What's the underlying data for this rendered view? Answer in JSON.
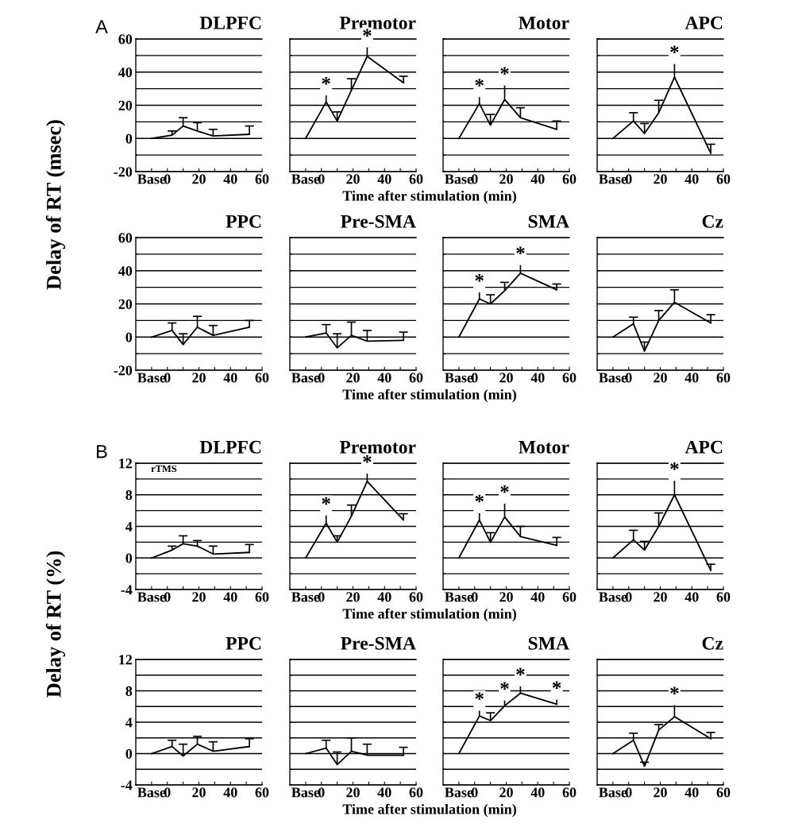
{
  "chart_data": [
    {
      "type": "line",
      "title": "DLPFC",
      "ylabel": "Delay of RT (msec)",
      "annotations": [
        "A"
      ],
      "x": [
        -10,
        3,
        10,
        19,
        29,
        52
      ],
      "xlim": [
        -20,
        60
      ],
      "xticks": [
        {
          "value": -10,
          "label": "Base"
        },
        0,
        {
          "value": 10,
          "label": null
        },
        20,
        {
          "value": 30,
          "label": null
        },
        40,
        {
          "value": 50,
          "label": null
        },
        60
      ],
      "ylim": [
        -20,
        60
      ],
      "yticks": [
        -20,
        {
          "value": -10,
          "label": null
        },
        0,
        {
          "value": 10,
          "label": null
        },
        20,
        {
          "value": 30,
          "label": null
        },
        40,
        {
          "value": 50,
          "label": null
        },
        60
      ],
      "grid": "y",
      "marker": "none",
      "line_style": "solid",
      "series": [
        {
          "color": "#000000",
          "values": [
            0,
            2,
            7.5,
            4.5,
            1.5,
            2.5
          ],
          "errors": [
            null,
            [
              2,
              4.5
            ],
            [
              7.5,
              12.5
            ],
            [
              4.5,
              9.5
            ],
            [
              1.5,
              5.5
            ],
            [
              2.5,
              7.5
            ]
          ]
        }
      ]
    },
    {
      "type": "line",
      "title": "Premotor",
      "xlabel": "Time after stimulation (min)",
      "annotations": [
        {
          "text": "*",
          "x": 3,
          "y": 26.5
        },
        {
          "text": "*",
          "x": 29,
          "y": 55.5
        }
      ],
      "x": [
        -10,
        3,
        10,
        19,
        29,
        52
      ],
      "xlim": [
        -20,
        60
      ],
      "xticks": [
        {
          "value": -10,
          "label": "Base"
        },
        0,
        {
          "value": 10,
          "label": null
        },
        20,
        {
          "value": 30,
          "label": null
        },
        40,
        {
          "value": 50,
          "label": null
        },
        60
      ],
      "ylim": [
        -20,
        60
      ],
      "yticks": [
        -20,
        {
          "value": -10,
          "label": null
        },
        0,
        {
          "value": 10,
          "label": null
        },
        20,
        {
          "value": 30,
          "label": null
        },
        40,
        {
          "value": 50,
          "label": null
        },
        60
      ],
      "grid": "y",
      "tick_labels": "x",
      "marker": "none",
      "line_style": "solid",
      "series": [
        {
          "color": "#000000",
          "values": [
            0,
            22,
            10.5,
            29,
            49.5,
            33.5
          ],
          "errors": [
            null,
            [
              22,
              26.5
            ],
            [
              10.5,
              16
            ],
            [
              29,
              36
            ],
            [
              49.5,
              55.5
            ],
            [
              33.5,
              37.5
            ]
          ]
        }
      ]
    },
    {
      "type": "line",
      "title": "Motor",
      "annotations": [
        {
          "text": "*",
          "x": 3,
          "y": 25.5
        },
        {
          "text": "*",
          "x": 19,
          "y": 32.5
        }
      ],
      "x": [
        -10,
        3,
        10,
        19,
        29,
        52
      ],
      "xlim": [
        -20,
        60
      ],
      "xticks": [
        {
          "value": -10,
          "label": "Base"
        },
        0,
        {
          "value": 10,
          "label": null
        },
        20,
        {
          "value": 30,
          "label": null
        },
        40,
        {
          "value": 50,
          "label": null
        },
        60
      ],
      "ylim": [
        -20,
        60
      ],
      "yticks": [
        -20,
        {
          "value": -10,
          "label": null
        },
        0,
        {
          "value": 10,
          "label": null
        },
        20,
        {
          "value": 30,
          "label": null
        },
        40,
        {
          "value": 50,
          "label": null
        },
        60
      ],
      "grid": "y",
      "tick_labels": "x",
      "marker": "none",
      "line_style": "solid",
      "series": [
        {
          "color": "#000000",
          "values": [
            0,
            21,
            8,
            23.5,
            12.5,
            5.5
          ],
          "errors": [
            null,
            [
              21,
              25.5
            ],
            [
              8,
              14.5
            ],
            [
              23.5,
              32.5
            ],
            [
              12.5,
              18.5
            ],
            [
              5.5,
              10.5
            ]
          ]
        }
      ]
    },
    {
      "type": "line",
      "title": "APC",
      "annotations": [
        {
          "text": "*",
          "x": 29,
          "y": 45.5
        }
      ],
      "x": [
        -10,
        3,
        10,
        19,
        29,
        52
      ],
      "xlim": [
        -20,
        60
      ],
      "xticks": [
        {
          "value": -10,
          "label": "Base"
        },
        0,
        {
          "value": 10,
          "label": null
        },
        20,
        {
          "value": 30,
          "label": null
        },
        40,
        {
          "value": 50,
          "label": null
        },
        60
      ],
      "ylim": [
        -20,
        60
      ],
      "yticks": [
        -20,
        {
          "value": -10,
          "label": null
        },
        0,
        {
          "value": 10,
          "label": null
        },
        20,
        {
          "value": 30,
          "label": null
        },
        40,
        {
          "value": 50,
          "label": null
        },
        60
      ],
      "grid": "y",
      "tick_labels": "x",
      "marker": "none",
      "line_style": "solid",
      "series": [
        {
          "color": "#000000",
          "values": [
            0,
            10.5,
            3,
            15.5,
            37,
            -9
          ],
          "errors": [
            null,
            [
              10.5,
              15.5
            ],
            [
              3,
              9
            ],
            [
              15.5,
              23
            ],
            [
              37,
              45.5
            ],
            [
              -9,
              -3.5
            ]
          ]
        }
      ]
    },
    {
      "type": "line",
      "title": "PPC",
      "x": [
        -10,
        3,
        10,
        19,
        29,
        52
      ],
      "xlim": [
        -20,
        60
      ],
      "xticks": [
        {
          "value": -10,
          "label": "Base"
        },
        0,
        {
          "value": 10,
          "label": null
        },
        20,
        {
          "value": 30,
          "label": null
        },
        40,
        {
          "value": 50,
          "label": null
        },
        60
      ],
      "ylim": [
        -20,
        60
      ],
      "yticks": [
        -20,
        {
          "value": -10,
          "label": null
        },
        0,
        {
          "value": 10,
          "label": null
        },
        20,
        {
          "value": 30,
          "label": null
        },
        40,
        {
          "value": 50,
          "label": null
        },
        60
      ],
      "grid": "y",
      "marker": "none",
      "line_style": "solid",
      "series": [
        {
          "color": "#000000",
          "values": [
            0,
            4,
            -4.5,
            6,
            1,
            6
          ],
          "errors": [
            null,
            [
              4,
              8.5
            ],
            [
              -4.5,
              2
            ],
            [
              6,
              12.5
            ],
            [
              1,
              7
            ],
            [
              6,
              10
            ]
          ]
        }
      ]
    },
    {
      "type": "line",
      "title": "Pre-SMA",
      "xlabel": "Time after stimulation (min)",
      "x": [
        -10,
        3,
        10,
        19,
        29,
        52
      ],
      "xlim": [
        -20,
        60
      ],
      "xticks": [
        {
          "value": -10,
          "label": "Base"
        },
        0,
        {
          "value": 10,
          "label": null
        },
        20,
        {
          "value": 30,
          "label": null
        },
        40,
        {
          "value": 50,
          "label": null
        },
        60
      ],
      "ylim": [
        -20,
        60
      ],
      "yticks": [
        -20,
        {
          "value": -10,
          "label": null
        },
        0,
        {
          "value": 10,
          "label": null
        },
        20,
        {
          "value": 30,
          "label": null
        },
        40,
        {
          "value": 50,
          "label": null
        },
        60
      ],
      "grid": "y",
      "tick_labels": "x",
      "marker": "none",
      "line_style": "solid",
      "series": [
        {
          "color": "#000000",
          "values": [
            0,
            2.5,
            -6.5,
            1,
            -2.5,
            -2
          ],
          "errors": [
            null,
            [
              2.5,
              7.5
            ],
            [
              -6.5,
              2
            ],
            [
              1,
              9
            ],
            [
              -2.5,
              4
            ],
            [
              -2,
              3
            ]
          ]
        }
      ]
    },
    {
      "type": "line",
      "title": "SMA",
      "annotations": [
        {
          "text": "*",
          "x": 3,
          "y": 27.5
        },
        {
          "text": "*",
          "x": 29,
          "y": 44
        }
      ],
      "x": [
        -10,
        3,
        10,
        19,
        29,
        52
      ],
      "xlim": [
        -20,
        60
      ],
      "xticks": [
        {
          "value": -10,
          "label": "Base"
        },
        0,
        {
          "value": 10,
          "label": null
        },
        20,
        {
          "value": 30,
          "label": null
        },
        40,
        {
          "value": 50,
          "label": null
        },
        60
      ],
      "ylim": [
        -20,
        60
      ],
      "yticks": [
        -20,
        {
          "value": -10,
          "label": null
        },
        0,
        {
          "value": 10,
          "label": null
        },
        20,
        {
          "value": 30,
          "label": null
        },
        40,
        {
          "value": 50,
          "label": null
        },
        60
      ],
      "grid": "y",
      "tick_labels": "x",
      "marker": "none",
      "line_style": "solid",
      "series": [
        {
          "color": "#000000",
          "values": [
            0,
            23,
            20,
            28,
            38.5,
            28.5
          ],
          "errors": [
            null,
            [
              23,
              27.5
            ],
            [
              20,
              25.5
            ],
            [
              28,
              33
            ],
            [
              38.5,
              44
            ],
            [
              28.5,
              32
            ]
          ]
        }
      ]
    },
    {
      "type": "line",
      "title": "Cz",
      "x": [
        -10,
        3,
        10,
        19,
        29,
        52
      ],
      "xlim": [
        -20,
        60
      ],
      "xticks": [
        {
          "value": -10,
          "label": "Base"
        },
        0,
        {
          "value": 10,
          "label": null
        },
        20,
        {
          "value": 30,
          "label": null
        },
        40,
        {
          "value": 50,
          "label": null
        },
        60
      ],
      "ylim": [
        -20,
        60
      ],
      "yticks": [
        -20,
        {
          "value": -10,
          "label": null
        },
        0,
        {
          "value": 10,
          "label": null
        },
        20,
        {
          "value": 30,
          "label": null
        },
        40,
        {
          "value": 50,
          "label": null
        },
        60
      ],
      "grid": "y",
      "tick_labels": "x",
      "marker": "none",
      "line_style": "solid",
      "series": [
        {
          "color": "#000000",
          "values": [
            0,
            8,
            -8.5,
            10,
            21,
            8.5
          ],
          "errors": [
            null,
            [
              8,
              12
            ],
            [
              -8.5,
              -3
            ],
            [
              10,
              16
            ],
            [
              21,
              28.5
            ],
            [
              8.5,
              13.5
            ]
          ]
        }
      ]
    },
    {
      "type": "line",
      "title": "DLPFC",
      "ylabel": "Delay of RT (%)",
      "annotations": [
        "B",
        "rTMS"
      ],
      "x": [
        -10,
        3,
        10,
        19,
        29,
        52
      ],
      "xlim": [
        -20,
        60
      ],
      "xticks": [
        {
          "value": -10,
          "label": "Base"
        },
        0,
        {
          "value": 10,
          "label": null
        },
        20,
        {
          "value": 30,
          "label": null
        },
        40,
        {
          "value": 50,
          "label": null
        },
        60
      ],
      "ylim": [
        -4,
        12
      ],
      "yticks": [
        -4,
        {
          "value": -2,
          "label": null
        },
        0,
        {
          "value": 2,
          "label": null
        },
        4,
        {
          "value": 6,
          "label": null
        },
        8,
        {
          "value": 10,
          "label": null
        },
        12
      ],
      "grid": "y",
      "marker": "none",
      "line_style": "solid",
      "series": [
        {
          "color": "#000000",
          "values": [
            0,
            1,
            1.8,
            1.5,
            0.5,
            0.7
          ],
          "errors": [
            null,
            [
              1,
              1.5
            ],
            [
              1.8,
              2.8
            ],
            [
              1.5,
              2.2
            ],
            [
              0.5,
              1.5
            ],
            [
              0.7,
              1.7
            ]
          ]
        }
      ]
    },
    {
      "type": "line",
      "title": "Premotor",
      "xlabel": "Time after stimulation (min)",
      "annotations": [
        {
          "text": "*",
          "x": 3,
          "y": 5.5
        },
        {
          "text": "*",
          "x": 29,
          "y": 10.8
        }
      ],
      "x": [
        -10,
        3,
        10,
        19,
        29,
        52
      ],
      "xlim": [
        -20,
        60
      ],
      "xticks": [
        {
          "value": -10,
          "label": "Base"
        },
        0,
        {
          "value": 10,
          "label": null
        },
        20,
        {
          "value": 30,
          "label": null
        },
        40,
        {
          "value": 50,
          "label": null
        },
        60
      ],
      "ylim": [
        -4,
        12
      ],
      "yticks": [
        -4,
        {
          "value": -2,
          "label": null
        },
        0,
        {
          "value": 2,
          "label": null
        },
        4,
        {
          "value": 6,
          "label": null
        },
        8,
        {
          "value": 10,
          "label": null
        },
        12
      ],
      "grid": "y",
      "tick_labels": "x",
      "marker": "none",
      "line_style": "solid",
      "series": [
        {
          "color": "#000000",
          "values": [
            0,
            4.4,
            2,
            5.3,
            9.7,
            4.8
          ],
          "errors": [
            null,
            [
              4.4,
              5.5
            ],
            [
              2,
              2.8
            ],
            [
              5.3,
              6.7
            ],
            [
              9.7,
              10.8
            ],
            [
              4.8,
              5.6
            ]
          ]
        }
      ]
    },
    {
      "type": "line",
      "title": "Motor",
      "annotations": [
        {
          "text": "*",
          "x": 3,
          "y": 5.8
        },
        {
          "text": "*",
          "x": 19,
          "y": 7
        }
      ],
      "x": [
        -10,
        3,
        10,
        19,
        29,
        52
      ],
      "xlim": [
        -20,
        60
      ],
      "xticks": [
        {
          "value": -10,
          "label": "Base"
        },
        0,
        {
          "value": 10,
          "label": null
        },
        20,
        {
          "value": 30,
          "label": null
        },
        40,
        {
          "value": 50,
          "label": null
        },
        60
      ],
      "ylim": [
        -4,
        12
      ],
      "yticks": [
        -4,
        {
          "value": -2,
          "label": null
        },
        0,
        {
          "value": 2,
          "label": null
        },
        4,
        {
          "value": 6,
          "label": null
        },
        8,
        {
          "value": 10,
          "label": null
        },
        12
      ],
      "grid": "y",
      "tick_labels": "x",
      "marker": "none",
      "line_style": "solid",
      "series": [
        {
          "color": "#000000",
          "values": [
            0,
            4.8,
            2,
            5.2,
            2.7,
            1.6
          ],
          "errors": [
            null,
            [
              4.8,
              5.8
            ],
            [
              2,
              3.2
            ],
            [
              5.2,
              7
            ],
            [
              2.7,
              4
            ],
            [
              1.6,
              2.6
            ]
          ]
        }
      ]
    },
    {
      "type": "line",
      "title": "APC",
      "annotations": [
        {
          "text": "*",
          "x": 29,
          "y": 9.9
        }
      ],
      "x": [
        -10,
        3,
        10,
        19,
        29,
        52
      ],
      "xlim": [
        -20,
        60
      ],
      "xticks": [
        {
          "value": -10,
          "label": "Base"
        },
        0,
        {
          "value": 10,
          "label": null
        },
        20,
        {
          "value": 30,
          "label": null
        },
        40,
        {
          "value": 50,
          "label": null
        },
        60
      ],
      "ylim": [
        -4,
        12
      ],
      "yticks": [
        -4,
        {
          "value": -2,
          "label": null
        },
        0,
        {
          "value": 2,
          "label": null
        },
        4,
        {
          "value": 6,
          "label": null
        },
        8,
        {
          "value": 10,
          "label": null
        },
        12
      ],
      "grid": "y",
      "tick_labels": "x",
      "marker": "none",
      "line_style": "solid",
      "series": [
        {
          "color": "#000000",
          "values": [
            0,
            2.3,
            1,
            4,
            8,
            -1.6
          ],
          "errors": [
            null,
            [
              2.3,
              3.5
            ],
            [
              1,
              2.1
            ],
            [
              4,
              5.7
            ],
            [
              8,
              9.9
            ],
            [
              -1.6,
              -0.8
            ]
          ]
        }
      ]
    },
    {
      "type": "line",
      "title": "PPC",
      "x": [
        -10,
        3,
        10,
        19,
        29,
        52
      ],
      "xlim": [
        -20,
        60
      ],
      "xticks": [
        {
          "value": -10,
          "label": "Base"
        },
        0,
        {
          "value": 10,
          "label": null
        },
        20,
        {
          "value": 30,
          "label": null
        },
        40,
        {
          "value": 50,
          "label": null
        },
        60
      ],
      "ylim": [
        -4,
        12
      ],
      "yticks": [
        -4,
        {
          "value": -2,
          "label": null
        },
        0,
        {
          "value": 2,
          "label": null
        },
        4,
        {
          "value": 6,
          "label": null
        },
        8,
        {
          "value": 10,
          "label": null
        },
        12
      ],
      "grid": "y",
      "marker": "none",
      "line_style": "solid",
      "series": [
        {
          "color": "#000000",
          "values": [
            0,
            0.9,
            -0.3,
            1.2,
            0.3,
            0.9
          ],
          "errors": [
            null,
            [
              0.9,
              1.7
            ],
            [
              -0.3,
              1.2
            ],
            [
              1.2,
              2.2
            ],
            [
              0.3,
              1.5
            ],
            [
              0.9,
              1.9
            ]
          ]
        }
      ]
    },
    {
      "type": "line",
      "title": "Pre-SMA",
      "xlabel": "Time after stimulation (min)",
      "x": [
        -10,
        3,
        10,
        19,
        29,
        52
      ],
      "xlim": [
        -20,
        60
      ],
      "xticks": [
        {
          "value": -10,
          "label": "Base"
        },
        0,
        {
          "value": 10,
          "label": null
        },
        20,
        {
          "value": 30,
          "label": null
        },
        40,
        {
          "value": 50,
          "label": null
        },
        60
      ],
      "ylim": [
        -4,
        12
      ],
      "yticks": [
        -4,
        {
          "value": -2,
          "label": null
        },
        0,
        {
          "value": 2,
          "label": null
        },
        4,
        {
          "value": 6,
          "label": null
        },
        8,
        {
          "value": 10,
          "label": null
        },
        12
      ],
      "grid": "y",
      "tick_labels": "x",
      "marker": "none",
      "line_style": "solid",
      "series": [
        {
          "color": "#000000",
          "values": [
            0,
            0.7,
            -1.4,
            0.3,
            -0.2,
            -0.2
          ],
          "errors": [
            null,
            [
              0.7,
              1.7
            ],
            [
              -1.4,
              0.2
            ],
            [
              0.3,
              2
            ],
            [
              -0.2,
              1.2
            ],
            [
              -0.2,
              0.8
            ]
          ]
        }
      ]
    },
    {
      "type": "line",
      "title": "SMA",
      "annotations": [
        {
          "text": "*",
          "x": 3,
          "y": 5.6
        },
        {
          "text": "*",
          "x": 19,
          "y": 6.9
        },
        {
          "text": "*",
          "x": 29,
          "y": 8.7
        },
        {
          "text": "*",
          "x": 52,
          "y": 7
        }
      ],
      "x": [
        -10,
        3,
        10,
        19,
        29,
        52
      ],
      "xlim": [
        -20,
        60
      ],
      "xticks": [
        {
          "value": -10,
          "label": "Base"
        },
        0,
        {
          "value": 10,
          "label": null
        },
        20,
        {
          "value": 30,
          "label": null
        },
        40,
        {
          "value": 50,
          "label": null
        },
        60
      ],
      "ylim": [
        -4,
        12
      ],
      "yticks": [
        -4,
        {
          "value": -2,
          "label": null
        },
        0,
        {
          "value": 2,
          "label": null
        },
        4,
        {
          "value": 6,
          "label": null
        },
        8,
        {
          "value": 10,
          "label": null
        },
        12
      ],
      "grid": "y",
      "tick_labels": "x",
      "marker": "none",
      "line_style": "solid",
      "series": [
        {
          "color": "#000000",
          "values": [
            0,
            4.8,
            4.2,
            6.1,
            7.7,
            6.3
          ],
          "errors": [
            null,
            [
              4.8,
              5.6
            ],
            [
              4.2,
              5.2
            ],
            [
              6.1,
              6.9
            ],
            [
              7.7,
              8.7
            ],
            [
              6.3,
              7
            ]
          ]
        }
      ]
    },
    {
      "type": "line",
      "title": "Cz",
      "annotations": [
        {
          "text": "*",
          "x": 29,
          "y": 6.3
        }
      ],
      "x": [
        -10,
        3,
        10,
        19,
        29,
        52
      ],
      "xlim": [
        -20,
        60
      ],
      "xticks": [
        {
          "value": -10,
          "label": "Base"
        },
        0,
        {
          "value": 10,
          "label": null
        },
        20,
        {
          "value": 30,
          "label": null
        },
        40,
        {
          "value": 50,
          "label": null
        },
        60
      ],
      "ylim": [
        -4,
        12
      ],
      "yticks": [
        -4,
        {
          "value": -2,
          "label": null
        },
        0,
        {
          "value": 2,
          "label": null
        },
        4,
        {
          "value": 6,
          "label": null
        },
        8,
        {
          "value": 10,
          "label": null
        },
        12
      ],
      "grid": "y",
      "tick_labels": "x",
      "marker": "none",
      "line_style": "solid",
      "series": [
        {
          "color": "#000000",
          "values": [
            0,
            1.7,
            -1.6,
            3,
            4.7,
            1.9
          ],
          "errors": [
            null,
            [
              1.7,
              2.6
            ],
            [
              -1.6,
              -1.1
            ],
            [
              3,
              3.7
            ],
            [
              4.7,
              6.3
            ],
            [
              1.9,
              2.7
            ]
          ]
        }
      ]
    }
  ]
}
